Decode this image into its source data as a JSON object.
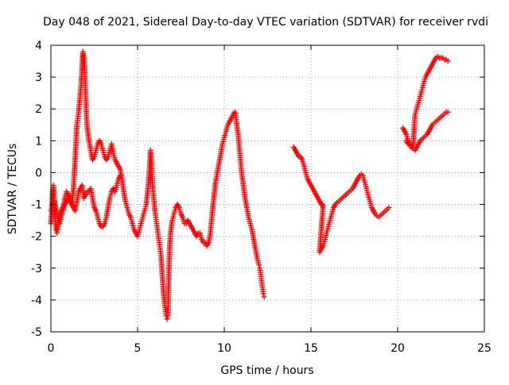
{
  "chart_data": {
    "type": "scatter",
    "title": "Day 048 of 2021, Sidereal Day-to-day VTEC variation (SDTVAR) for receiver rvdi",
    "xlabel": "GPS time / hours",
    "ylabel": "SDTVAR / TECUs",
    "xlim": [
      0,
      25
    ],
    "ylim": [
      -5,
      4
    ],
    "xticks": [
      0,
      5,
      10,
      15,
      20,
      25
    ],
    "yticks": [
      -5,
      -4,
      -3,
      -2,
      -1,
      0,
      1,
      2,
      3,
      4
    ],
    "xtick_labels": [
      "0",
      "5",
      "10",
      "15",
      "20",
      "25"
    ],
    "ytick_labels": [
      "-5",
      "-4",
      "-3",
      "-2",
      "-1",
      "0",
      "1",
      "2",
      "3",
      "4"
    ],
    "grid": true,
    "marker": "+",
    "color": "#ff0000",
    "series": [
      {
        "name": "SDTVAR",
        "x": [
          0.0,
          0.05,
          0.1,
          0.15,
          0.2,
          0.25,
          0.3,
          0.35,
          0.4,
          0.45,
          0.5,
          0.6,
          0.7,
          0.8,
          0.9,
          1.0,
          1.1,
          1.2,
          1.3,
          1.4,
          1.5,
          1.55,
          1.6,
          1.65,
          1.7,
          1.75,
          1.8,
          1.85,
          1.9,
          1.95,
          2.0,
          2.05,
          2.1,
          2.2,
          2.3,
          2.4,
          2.5,
          2.6,
          2.7,
          2.8,
          2.9,
          3.0,
          3.1,
          3.2,
          3.3,
          3.4,
          3.5,
          3.6,
          3.7,
          3.8,
          3.9,
          4.0,
          4.1,
          4.2,
          4.3,
          4.4,
          4.5,
          4.6,
          4.7,
          4.8,
          4.9,
          5.0,
          5.1,
          5.2,
          5.3,
          5.4,
          5.5,
          5.6,
          5.7,
          5.75,
          5.8,
          5.85,
          5.9,
          5.95,
          6.0,
          6.05,
          6.1,
          6.15,
          6.2,
          6.25,
          6.3,
          6.35,
          6.4,
          6.45,
          6.5,
          6.55,
          6.6,
          6.65,
          6.7,
          6.75,
          6.8,
          6.85,
          6.9,
          7.0,
          7.1,
          7.2,
          7.3,
          7.4,
          7.5,
          7.6,
          7.7,
          7.8,
          7.9,
          8.0,
          8.1,
          8.2,
          8.3,
          8.4,
          8.5,
          8.6,
          8.7,
          8.8,
          8.9,
          9.0,
          9.1,
          9.2,
          9.3,
          9.4,
          9.5,
          9.6,
          9.7,
          9.8,
          9.9,
          10.0,
          10.1,
          10.2,
          10.3,
          10.4,
          10.5,
          10.6,
          10.65,
          10.7,
          10.8,
          10.9,
          11.0,
          11.1,
          11.2,
          11.3,
          11.4,
          11.5,
          11.6,
          11.7,
          11.8,
          11.9,
          12.0,
          12.05,
          12.1,
          12.15,
          12.2,
          12.25,
          12.3,
          14.0,
          14.1,
          14.2,
          14.3,
          14.4,
          14.5,
          14.6,
          14.7,
          14.8,
          14.9,
          15.0,
          15.1,
          15.2,
          15.3,
          15.4,
          15.5,
          15.6,
          15.65,
          15.7,
          15.5,
          15.6,
          15.7,
          15.8,
          15.9,
          16.0,
          16.1,
          16.2,
          16.3,
          16.4,
          16.5,
          16.6,
          16.7,
          16.8,
          16.9,
          17.0,
          17.1,
          17.2,
          17.3,
          17.4,
          17.5,
          17.6,
          17.7,
          17.8,
          17.9,
          18.0,
          18.1,
          18.2,
          18.3,
          18.4,
          18.5,
          18.6,
          18.7,
          18.8,
          18.9,
          19.0,
          19.1,
          19.2,
          19.3,
          19.4,
          19.5,
          20.3,
          20.4,
          20.5,
          20.6,
          20.7,
          20.8,
          20.9,
          21.0,
          21.1,
          21.2,
          21.3,
          21.4,
          21.5,
          21.6,
          21.7,
          21.8,
          21.9,
          22.0,
          22.1,
          22.2,
          22.3,
          22.4,
          22.5,
          22.6,
          22.7,
          22.8,
          22.9,
          20.5,
          20.6,
          20.7,
          20.8,
          20.9,
          21.0,
          21.1,
          21.2,
          21.3,
          21.4,
          21.5,
          21.6,
          21.7,
          21.8,
          21.9,
          22.0,
          22.1,
          22.2,
          22.3,
          22.4,
          22.5,
          22.6,
          22.7,
          22.8,
          22.9,
          0.0,
          0.1,
          0.2,
          0.3,
          0.4,
          0.5,
          0.6,
          0.7,
          0.8,
          0.9,
          1.0,
          1.1,
          1.2,
          1.3,
          1.4,
          1.5,
          1.6,
          1.7,
          1.8,
          1.9,
          2.0,
          2.1,
          2.2,
          2.3,
          2.4,
          2.5,
          2.6,
          2.7,
          2.8,
          2.9,
          3.0,
          3.1,
          3.2,
          3.3,
          3.4,
          3.5,
          3.6,
          3.7,
          3.8,
          3.9,
          4.0
        ],
        "y": [
          -1.6,
          -1.2,
          -0.6,
          -0.4,
          -1.0,
          -1.5,
          -1.8,
          -1.9,
          -1.7,
          -1.5,
          -1.3,
          -1.2,
          -1.1,
          -1.0,
          -0.9,
          -0.8,
          -0.9,
          -1.0,
          -0.5,
          0.4,
          1.5,
          1.7,
          1.9,
          2.2,
          2.5,
          2.8,
          3.3,
          3.8,
          3.6,
          3.2,
          2.5,
          1.8,
          1.4,
          1.0,
          0.7,
          0.4,
          0.5,
          0.7,
          0.9,
          1.0,
          0.9,
          0.7,
          0.5,
          0.4,
          0.5,
          0.7,
          0.9,
          0.6,
          0.4,
          0.3,
          0.2,
          0.1,
          -0.2,
          -0.6,
          -0.9,
          -1.1,
          -1.3,
          -1.4,
          -1.6,
          -1.8,
          -1.9,
          -2.0,
          -1.8,
          -1.6,
          -1.4,
          -1.2,
          -1.0,
          -0.5,
          0.2,
          0.7,
          0.3,
          -0.3,
          -0.6,
          -0.9,
          -1.2,
          -1.4,
          -1.6,
          -1.8,
          -2.0,
          -2.2,
          -2.4,
          -2.6,
          -3.0,
          -3.4,
          -3.8,
          -4.1,
          -4.3,
          -4.5,
          -4.6,
          -4.5,
          -3.2,
          -2.4,
          -1.9,
          -1.5,
          -1.3,
          -1.1,
          -1.0,
          -1.1,
          -1.3,
          -1.4,
          -1.6,
          -1.6,
          -1.5,
          -1.6,
          -1.7,
          -1.8,
          -1.9,
          -2.0,
          -1.9,
          -1.9,
          -2.1,
          -2.2,
          -2.2,
          -2.3,
          -2.2,
          -1.9,
          -1.3,
          -0.8,
          -0.3,
          0.0,
          0.3,
          0.6,
          0.9,
          1.1,
          1.3,
          1.5,
          1.6,
          1.7,
          1.8,
          1.9,
          1.85,
          1.6,
          1.2,
          0.6,
          0.0,
          -0.4,
          -0.8,
          -1.1,
          -1.4,
          -1.6,
          -1.8,
          -2.1,
          -2.4,
          -2.7,
          -2.9,
          -3.0,
          -3.2,
          -3.4,
          -3.6,
          -3.8,
          -3.9,
          0.8,
          0.7,
          0.6,
          0.5,
          0.5,
          0.4,
          0.2,
          0.0,
          -0.2,
          -0.3,
          -0.4,
          -0.5,
          -0.6,
          -0.7,
          -0.8,
          -0.9,
          -1.0,
          -1.0,
          -1.05,
          -2.5,
          -2.4,
          -2.3,
          -2.1,
          -1.9,
          -1.7,
          -1.5,
          -1.3,
          -1.1,
          -1.0,
          -0.95,
          -0.9,
          -0.85,
          -0.8,
          -0.75,
          -0.7,
          -0.65,
          -0.6,
          -0.55,
          -0.5,
          -0.4,
          -0.3,
          -0.2,
          -0.1,
          -0.05,
          -0.1,
          -0.3,
          -0.5,
          -0.7,
          -0.9,
          -1.1,
          -1.2,
          -1.3,
          -1.35,
          -1.4,
          -1.35,
          -1.3,
          -1.25,
          -1.2,
          -1.15,
          -1.1,
          1.4,
          1.3,
          1.2,
          1.0,
          0.9,
          0.8,
          0.9,
          1.8,
          2.0,
          2.2,
          2.4,
          2.6,
          2.8,
          3.0,
          3.1,
          3.2,
          3.3,
          3.4,
          3.5,
          3.6,
          3.65,
          3.6,
          3.6,
          3.6,
          3.55,
          3.55,
          3.5,
          1.0,
          0.9,
          0.85,
          0.8,
          0.75,
          0.7,
          0.8,
          0.9,
          1.0,
          1.05,
          1.1,
          1.15,
          1.2,
          1.3,
          1.4,
          1.5,
          1.55,
          1.6,
          1.65,
          1.7,
          1.75,
          1.8,
          1.85,
          1.9,
          1.9,
          -1.2,
          -1.0,
          -0.9,
          -1.2,
          -1.5,
          -1.6,
          -1.4,
          -1.2,
          -0.8,
          -0.6,
          -0.7,
          -0.8,
          -1.0,
          -1.1,
          -1.2,
          -0.9,
          -0.6,
          -0.5,
          -0.4,
          -0.8,
          -0.7,
          -0.6,
          -0.6,
          -0.5,
          -0.8,
          -1.1,
          -1.2,
          -1.4,
          -1.6,
          -1.7,
          -1.7,
          -1.6,
          -1.4,
          -1.1,
          -0.8,
          -0.6,
          -0.5,
          -0.6,
          -0.4,
          -0.2,
          -0.1
        ]
      }
    ]
  }
}
